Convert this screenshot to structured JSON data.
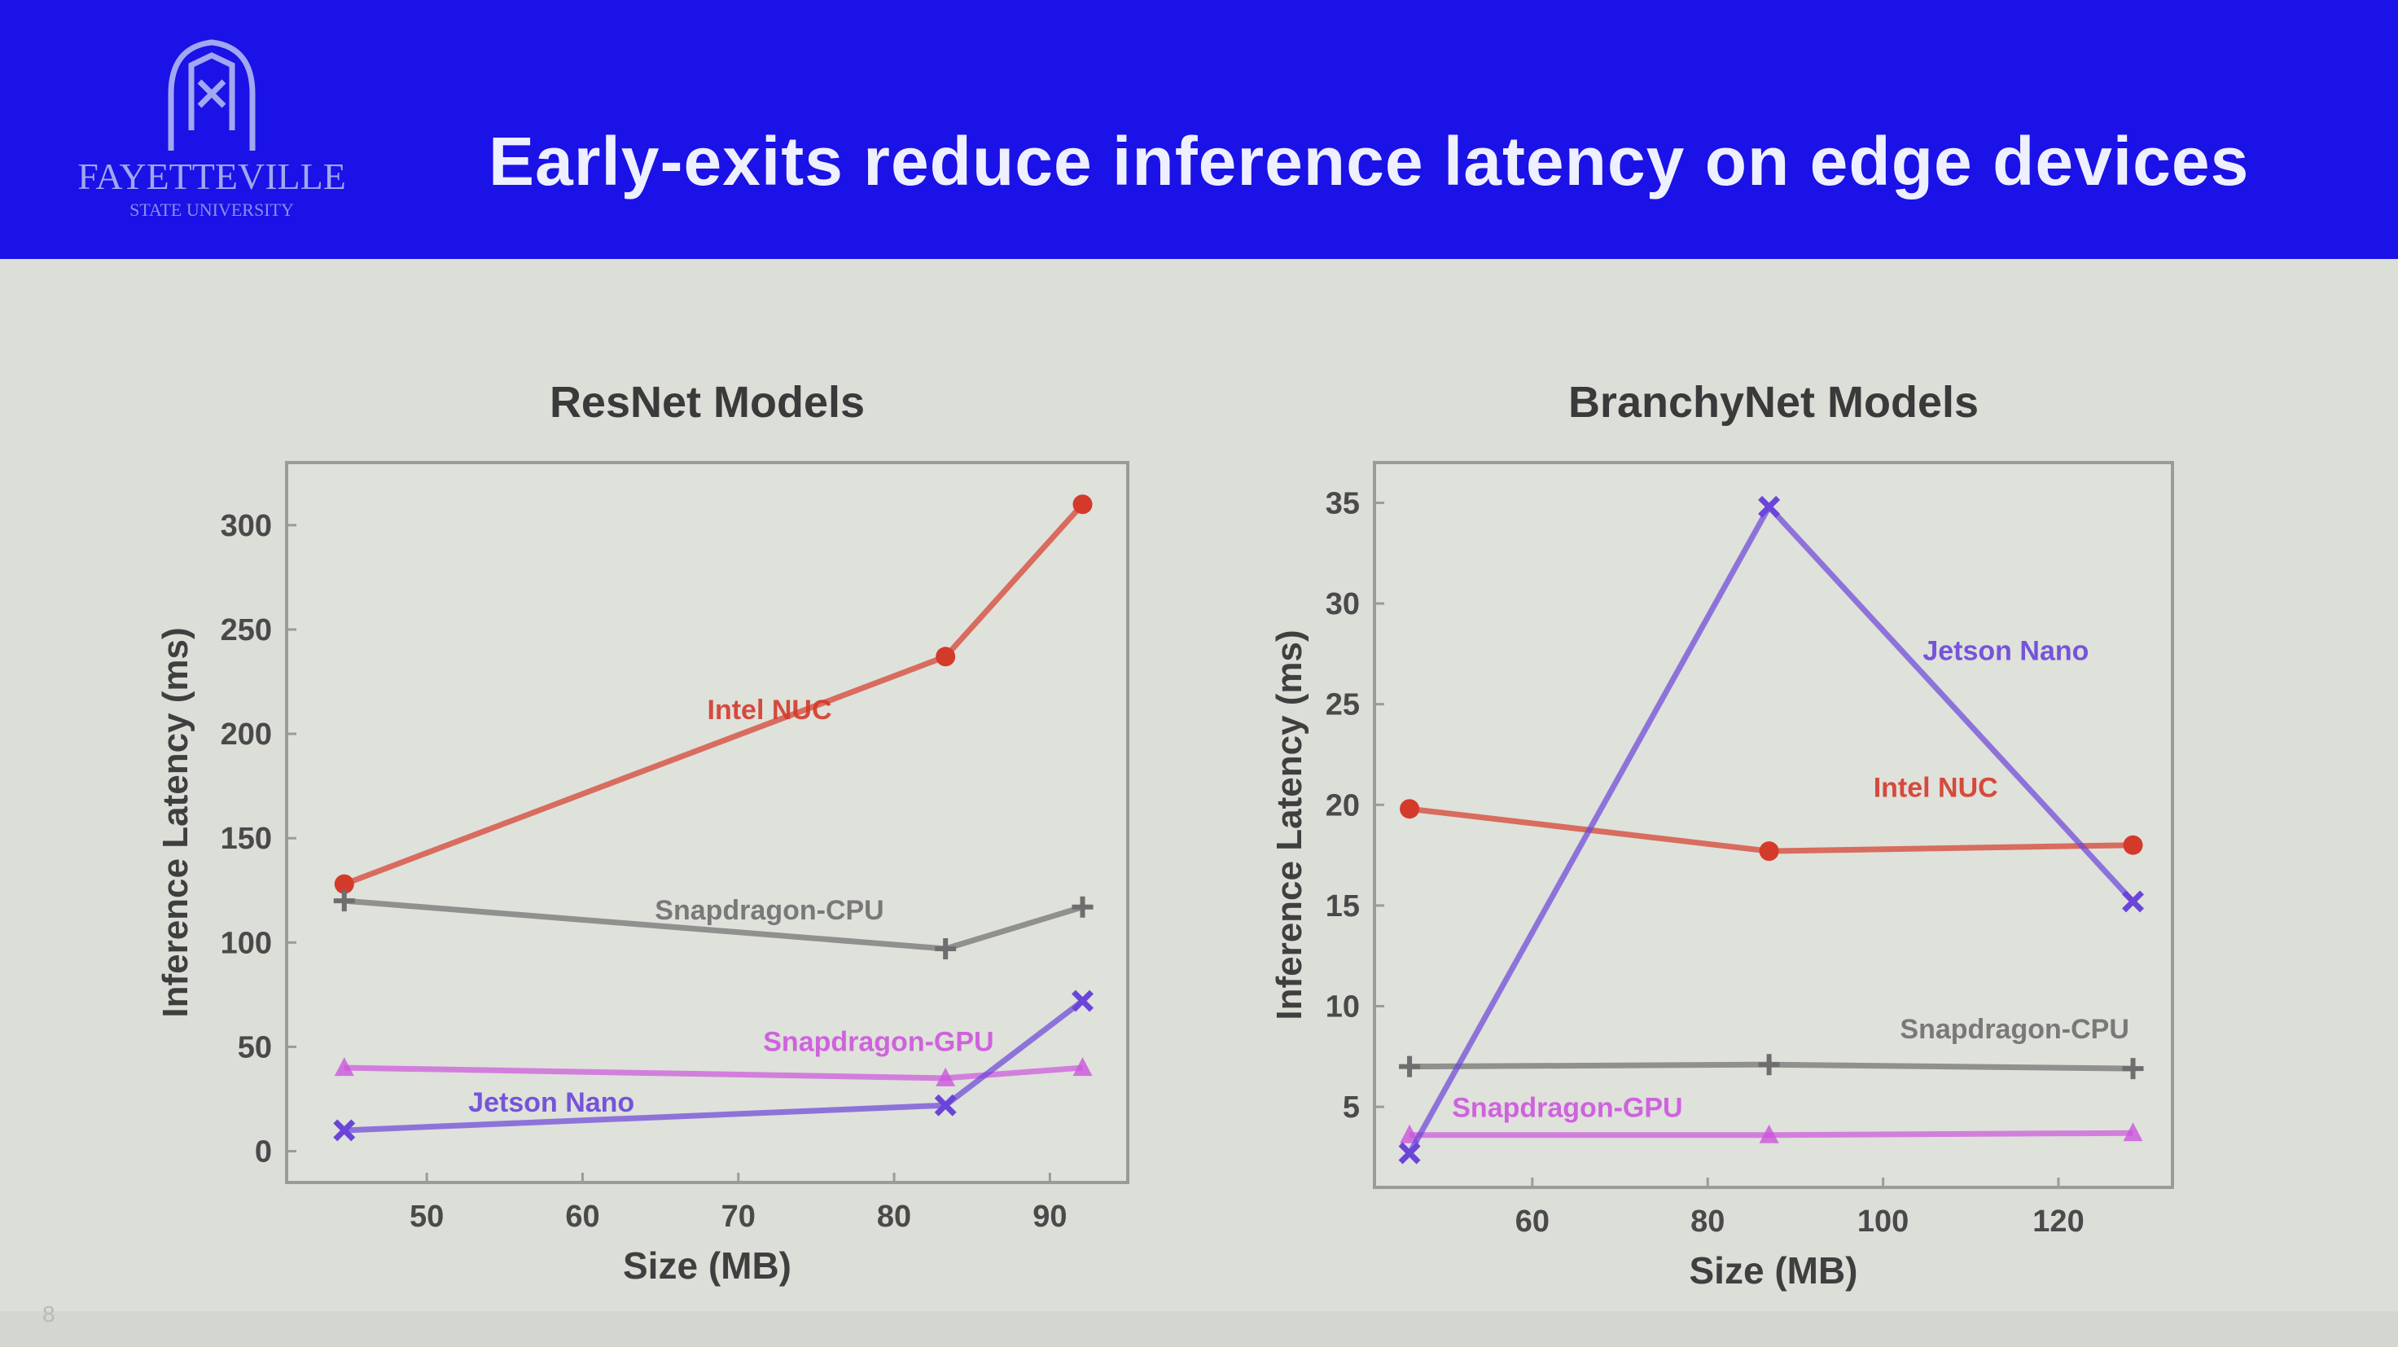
{
  "slide": {
    "title": "Early-exits reduce inference latency on edge devices",
    "logo": {
      "text": "FAYETTEVILLE",
      "subtext": "STATE UNIVERSITY",
      "icon": "university-logo-icon"
    },
    "slide_number": "8",
    "colors": {
      "header": "#1a12e6",
      "background": "#dcded8",
      "title_text": "#eef0ff"
    }
  },
  "chart_data": [
    {
      "type": "line",
      "title": "ResNet Models",
      "xlabel": "Size (MB)",
      "ylabel": "Inference Latency (ms)",
      "xlim": [
        41,
        95
      ],
      "ylim": [
        -15,
        330
      ],
      "xticks": [
        50,
        60,
        70,
        80,
        90
      ],
      "yticks": [
        0,
        50,
        100,
        150,
        200,
        250,
        300
      ],
      "series": [
        {
          "name": "Intel NUC",
          "color": "#d43a2a",
          "marker": "circle",
          "x": [
            44.7,
            83.3,
            92.1
          ],
          "y": [
            128,
            237,
            310
          ],
          "label_pos": [
            72,
            207
          ]
        },
        {
          "name": "Snapdragon-CPU",
          "color": "#6e6e6e",
          "marker": "plus",
          "x": [
            44.7,
            83.3,
            92.1
          ],
          "y": [
            120,
            97,
            117
          ],
          "label_pos": [
            72,
            111
          ]
        },
        {
          "name": "Snapdragon-GPU",
          "color": "#cc55dd",
          "marker": "triangle",
          "x": [
            44.7,
            83.3,
            92.1
          ],
          "y": [
            40,
            35,
            40
          ],
          "label_pos": [
            79,
            48
          ]
        },
        {
          "name": "Jetson Nano",
          "color": "#6a45d8",
          "marker": "x",
          "x": [
            44.7,
            83.3,
            92.1
          ],
          "y": [
            10,
            22,
            72
          ],
          "label_pos": [
            58,
            19
          ]
        }
      ]
    },
    {
      "type": "line",
      "title": "BranchyNet Models",
      "xlabel": "Size (MB)",
      "ylabel": "Inference Latency (ms)",
      "xlim": [
        42,
        133
      ],
      "ylim": [
        1,
        37
      ],
      "xticks": [
        60,
        80,
        100,
        120
      ],
      "yticks": [
        5,
        10,
        15,
        20,
        25,
        30,
        35
      ],
      "series": [
        {
          "name": "Intel NUC",
          "color": "#d43a2a",
          "marker": "circle",
          "x": [
            46,
            87,
            128.5
          ],
          "y": [
            19.8,
            17.7,
            18.0
          ],
          "label_pos": [
            106,
            20.4
          ]
        },
        {
          "name": "Snapdragon-CPU",
          "color": "#6e6e6e",
          "marker": "plus",
          "x": [
            46,
            87,
            128.5
          ],
          "y": [
            7.0,
            7.1,
            6.9
          ],
          "label_pos": [
            115,
            8.4
          ]
        },
        {
          "name": "Snapdragon-GPU",
          "color": "#cc55dd",
          "marker": "triangle",
          "x": [
            46,
            87,
            128.5
          ],
          "y": [
            3.6,
            3.6,
            3.7
          ],
          "label_pos": [
            64,
            4.5
          ]
        },
        {
          "name": "Jetson Nano",
          "color": "#6a45d8",
          "marker": "x",
          "x": [
            46,
            87,
            128.5
          ],
          "y": [
            2.7,
            34.8,
            15.2
          ],
          "label_pos": [
            114,
            27.2
          ]
        }
      ]
    }
  ]
}
